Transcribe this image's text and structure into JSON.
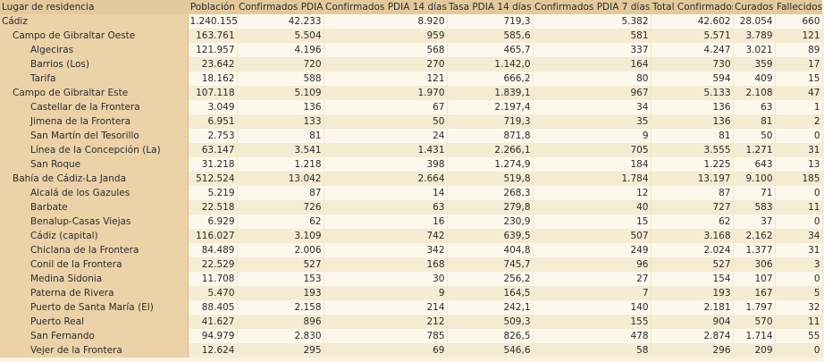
{
  "table": {
    "headers": [
      "Lugar de residencia",
      "Población",
      "Confirmados PDIA",
      "Confirmados PDIA 14 días",
      "Tasa PDIA 14 días",
      "Confirmados PDIA 7 días",
      "Total Confirmados",
      "Curados",
      "Fallecidos"
    ],
    "province": {
      "cells": [
        "Cádiz",
        "1.240.155",
        "42.233",
        "8.920",
        "719,3",
        "5.382",
        "42.602",
        "28.054",
        "660"
      ],
      "districts": [
        {
          "cells": [
            "Campo de Gibraltar Oeste",
            "163.761",
            "5.504",
            "959",
            "585,6",
            "581",
            "5.571",
            "3.789",
            "121"
          ],
          "municipalities": [
            [
              "Algeciras",
              "121.957",
              "4.196",
              "568",
              "465,7",
              "337",
              "4.247",
              "3.021",
              "89"
            ],
            [
              "Barrios (Los)",
              "23.642",
              "720",
              "270",
              "1.142,0",
              "164",
              "730",
              "359",
              "17"
            ],
            [
              "Tarifa",
              "18.162",
              "588",
              "121",
              "666,2",
              "80",
              "594",
              "409",
              "15"
            ]
          ]
        },
        {
          "cells": [
            "Campo de Gibraltar Este",
            "107.118",
            "5.109",
            "1.970",
            "1.839,1",
            "967",
            "5.133",
            "2.108",
            "47"
          ],
          "municipalities": [
            [
              "Castellar de la Frontera",
              "3.049",
              "136",
              "67",
              "2.197,4",
              "34",
              "136",
              "63",
              "1"
            ],
            [
              "Jimena de la Frontera",
              "6.951",
              "133",
              "50",
              "719,3",
              "35",
              "136",
              "81",
              "2"
            ],
            [
              "San Martín del Tesorillo",
              "2.753",
              "81",
              "24",
              "871,8",
              "9",
              "81",
              "50",
              "0"
            ],
            [
              "Línea de la Concepción (La)",
              "63.147",
              "3.541",
              "1.431",
              "2.266,1",
              "705",
              "3.555",
              "1.271",
              "31"
            ],
            [
              "San Roque",
              "31.218",
              "1.218",
              "398",
              "1.274,9",
              "184",
              "1.225",
              "643",
              "13"
            ]
          ]
        },
        {
          "cells": [
            "Bahía de Cádiz-La Janda",
            "512.524",
            "13.042",
            "2.664",
            "519,8",
            "1.784",
            "13.197",
            "9.100",
            "185"
          ],
          "municipalities": [
            [
              "Alcalá de los Gazules",
              "5.219",
              "87",
              "14",
              "268,3",
              "12",
              "87",
              "71",
              "0"
            ],
            [
              "Barbate",
              "22.518",
              "726",
              "63",
              "279,8",
              "40",
              "727",
              "583",
              "11"
            ],
            [
              "Benalup-Casas Viejas",
              "6.929",
              "62",
              "16",
              "230,9",
              "15",
              "62",
              "37",
              "0"
            ],
            [
              "Cádiz (capital)",
              "116.027",
              "3.109",
              "742",
              "639,5",
              "507",
              "3.168",
              "2.162",
              "34"
            ],
            [
              "Chiclana de la Frontera",
              "84.489",
              "2.006",
              "342",
              "404,8",
              "249",
              "2.024",
              "1.377",
              "31"
            ],
            [
              "Conil de la Frontera",
              "22.529",
              "527",
              "168",
              "745,7",
              "96",
              "527",
              "306",
              "3"
            ],
            [
              "Medina Sidonia",
              "11.708",
              "153",
              "30",
              "256,2",
              "27",
              "154",
              "107",
              "0"
            ],
            [
              "Paterna de Rivera",
              "5.470",
              "193",
              "9",
              "164,5",
              "7",
              "193",
              "167",
              "5"
            ],
            [
              "Puerto de Santa María (El)",
              "88.405",
              "2.158",
              "214",
              "242,1",
              "140",
              "2.181",
              "1.797",
              "32"
            ],
            [
              "Puerto Real",
              "41.627",
              "896",
              "212",
              "509,3",
              "155",
              "904",
              "570",
              "11"
            ],
            [
              "San Fernando",
              "94.979",
              "2.830",
              "785",
              "826,5",
              "478",
              "2.874",
              "1.714",
              "55"
            ],
            [
              "Vejer de la Frontera",
              "12.624",
              "295",
              "69",
              "546,6",
              "58",
              "296",
              "209",
              "0"
            ]
          ]
        }
      ]
    }
  }
}
